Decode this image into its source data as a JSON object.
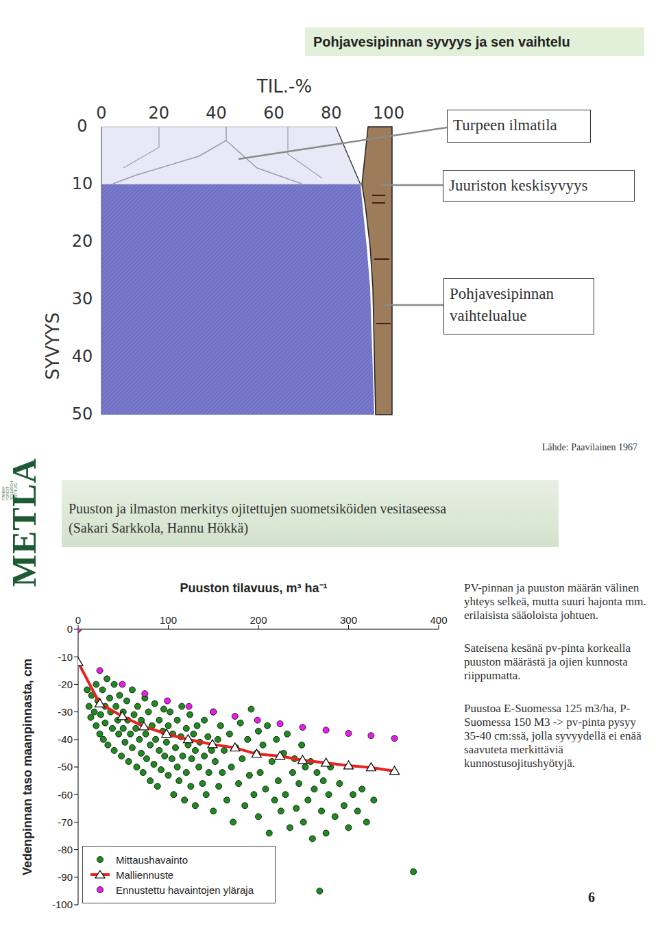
{
  "slide_title": "Pohjavesipinnan syvyys ja sen vaihtelu",
  "diagram": {
    "x_label": "TIL.-%",
    "xticks": [
      0,
      20,
      40,
      60,
      80,
      100
    ],
    "y_label": "SYVYYS",
    "yticks": [
      0,
      10,
      20,
      30,
      40,
      50
    ],
    "fluctuation_top": 10,
    "callouts": [
      "Turpeen ilmatila",
      "Juuriston keskisyvyys",
      "Pohjavesipinnan vaihtelualue"
    ],
    "source": "Lähde: Paavilainen 1967"
  },
  "logo": {
    "name": "METLA",
    "lines": [
      "FINNISH",
      "FOREST",
      "RESEARCH",
      "INSTITUTE"
    ]
  },
  "header": {
    "title": "Puuston ja ilmaston merkitys ojitettujen suometsiköiden vesitaseessa",
    "authors": "(Sakari Sarkkola, Hannu Hökkä)"
  },
  "chart_data": {
    "type": "scatter",
    "x_label": "Puuston tilavuus, m³ ha⁻¹",
    "y_label": "Vedenpinnan taso maanpinnasta, cm",
    "xlim": [
      0,
      400
    ],
    "xticks": [
      0,
      100,
      200,
      300,
      400
    ],
    "ylim": [
      -100,
      0
    ],
    "yticks": [
      0,
      -10,
      -20,
      -30,
      -40,
      -50,
      -60,
      -70,
      -80,
      -90,
      -100
    ],
    "grid": false,
    "legend": "lower left",
    "series": [
      {
        "name": "Mittaushavainto",
        "type": "scatter",
        "color": "#1f8a1f",
        "marker": "circle",
        "x": [
          10,
          12,
          14,
          15,
          18,
          20,
          20,
          22,
          24,
          25,
          27,
          28,
          30,
          30,
          32,
          33,
          35,
          36,
          38,
          40,
          40,
          42,
          44,
          45,
          46,
          48,
          50,
          50,
          52,
          54,
          55,
          56,
          58,
          60,
          60,
          62,
          64,
          65,
          66,
          68,
          70,
          70,
          72,
          74,
          75,
          76,
          78,
          80,
          80,
          82,
          84,
          85,
          86,
          88,
          90,
          90,
          92,
          94,
          95,
          96,
          98,
          100,
          100,
          102,
          104,
          105,
          106,
          108,
          110,
          110,
          112,
          114,
          115,
          116,
          118,
          120,
          120,
          122,
          124,
          125,
          126,
          128,
          130,
          130,
          132,
          134,
          135,
          138,
          140,
          140,
          142,
          144,
          145,
          148,
          150,
          150,
          152,
          155,
          156,
          158,
          160,
          162,
          165,
          168,
          170,
          172,
          175,
          178,
          180,
          182,
          185,
          188,
          190,
          192,
          195,
          198,
          200,
          200,
          202,
          205,
          208,
          210,
          212,
          215,
          218,
          220,
          222,
          225,
          228,
          230,
          232,
          235,
          238,
          240,
          242,
          245,
          248,
          250,
          252,
          255,
          258,
          260,
          262,
          265,
          268,
          270,
          272,
          275,
          278,
          280,
          285,
          290,
          295,
          300,
          305,
          310,
          315,
          320,
          328,
          372
        ],
        "values": [
          -22,
          -28,
          -32,
          -24,
          -30,
          -20,
          -35,
          -26,
          -38,
          -31,
          -22,
          -40,
          -28,
          -34,
          -18,
          -42,
          -25,
          -30,
          -36,
          -20,
          -44,
          -28,
          -33,
          -38,
          -24,
          -46,
          -30,
          -36,
          -41,
          -26,
          -33,
          -48,
          -38,
          -22,
          -43,
          -31,
          -36,
          -50,
          -28,
          -40,
          -33,
          -45,
          -52,
          -25,
          -38,
          -47,
          -30,
          -42,
          -55,
          -35,
          -49,
          -27,
          -40,
          -57,
          -33,
          -44,
          -51,
          -37,
          -29,
          -46,
          -41,
          -35,
          -53,
          -30,
          -47,
          -38,
          -60,
          -43,
          -33,
          -50,
          -55,
          -39,
          -28,
          -46,
          -62,
          -36,
          -52,
          -42,
          -31,
          -57,
          -47,
          -38,
          -44,
          -64,
          -35,
          -50,
          -41,
          -56,
          -33,
          -46,
          -60,
          -39,
          -52,
          -44,
          -30,
          -66,
          -48,
          -40,
          -57,
          -35,
          -52,
          -44,
          -62,
          -38,
          -50,
          -70,
          -43,
          -56,
          -34,
          -47,
          -64,
          -40,
          -53,
          -29,
          -60,
          -45,
          -37,
          -68,
          -52,
          -42,
          -58,
          -35,
          -74,
          -48,
          -62,
          -40,
          -55,
          -66,
          -45,
          -60,
          -38,
          -72,
          -52,
          -47,
          -65,
          -56,
          -42,
          -70,
          -50,
          -62,
          -48,
          -76,
          -58,
          -52,
          -95,
          -66,
          -55,
          -74,
          -60,
          -50,
          -68,
          -56,
          -64,
          -72,
          -60,
          -66,
          -58,
          -70,
          -62,
          -88
        ]
      },
      {
        "name": "Malliennuste",
        "type": "line",
        "color": "#e8231b",
        "marker": "triangle",
        "x": [
          0,
          24,
          49,
          73,
          98,
          122,
          149,
          174,
          198,
          224,
          249,
          275,
          300,
          325,
          351
        ],
        "values": [
          -12,
          -27,
          -31.6,
          -35.3,
          -38,
          -40,
          -41.8,
          -43,
          -45.3,
          -46,
          -47.5,
          -48.5,
          -49.5,
          -50.2,
          -51.5
        ]
      },
      {
        "name": "Ennustettu havaintojen yläraja",
        "type": "scatter",
        "color": "#e81ee8",
        "marker": "circle",
        "x": [
          0,
          24,
          49,
          74,
          99,
          123,
          150,
          174,
          199,
          224,
          249,
          275,
          300,
          325,
          351
        ],
        "values": [
          0,
          -15,
          -20,
          -23.4,
          -26,
          -28,
          -30,
          -31.6,
          -33,
          -34.3,
          -35.6,
          -36.6,
          -37.8,
          -38.6,
          -39.6
        ]
      }
    ]
  },
  "notes": [
    "PV-pinnan ja puuston määrän välinen yhteys selkeä, mutta suuri hajonta mm. erilaisista sääoloista johtuen.",
    "Sateisena kesänä pv-pinta korkealla puuston määrästä ja ojien kunnosta riippumatta.",
    "Puustoa E-Suomessa 125 m3/ha, P-Suomessa 150 M3 -> pv-pinta pysyy 35-40 cm:ssä, jolla syvyydellä ei enää saavuteta merkittäviä kunnostusojitushyötyjä."
  ],
  "page": "6"
}
